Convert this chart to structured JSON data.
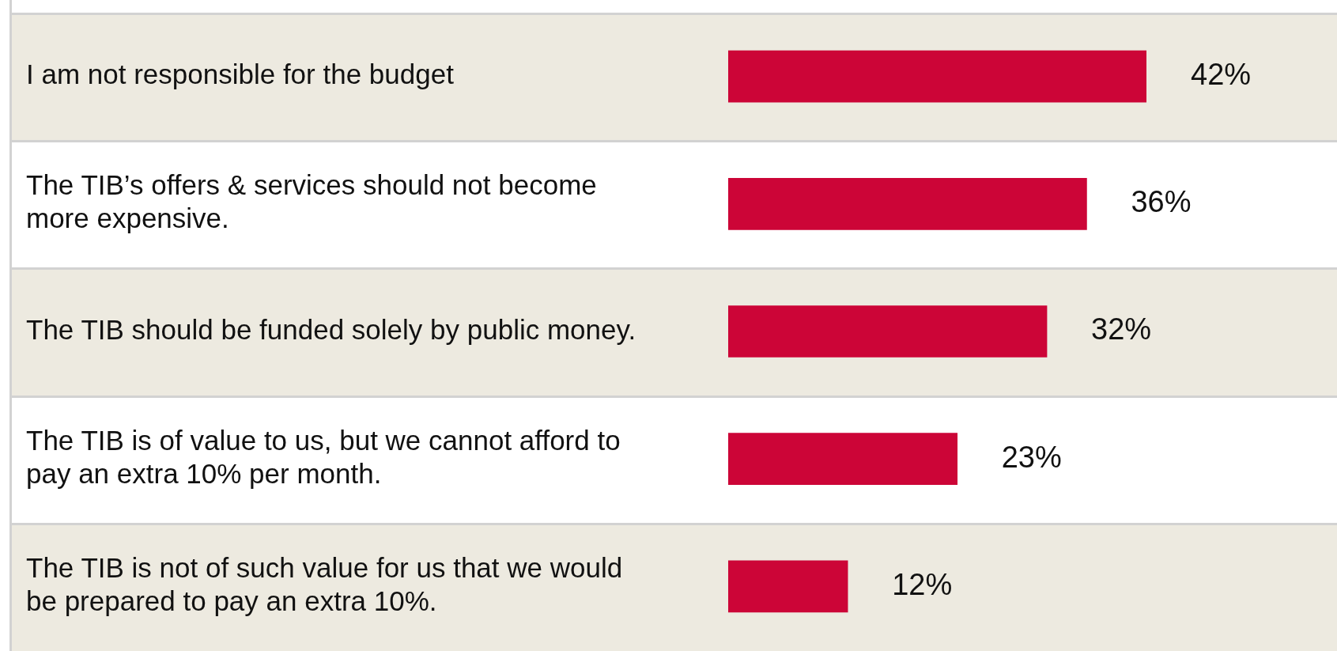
{
  "chart_data": {
    "type": "bar",
    "orientation": "horizontal",
    "categories": [
      "I am not responsible for the budget",
      "The TIB’s offers & services should not become more expensive.",
      "The TIB should be funded solely by public money.",
      "The TIB is of value to us, but we cannot afford to pay an extra 10% per month.",
      "The TIB is not of such value for us that we would be prepared to pay an extra 10%."
    ],
    "values": [
      42,
      36,
      32,
      23,
      12
    ],
    "value_labels": [
      "42%",
      "36%",
      "32%",
      "23%",
      "12%"
    ],
    "color": "#cc0537",
    "legend": false
  }
}
